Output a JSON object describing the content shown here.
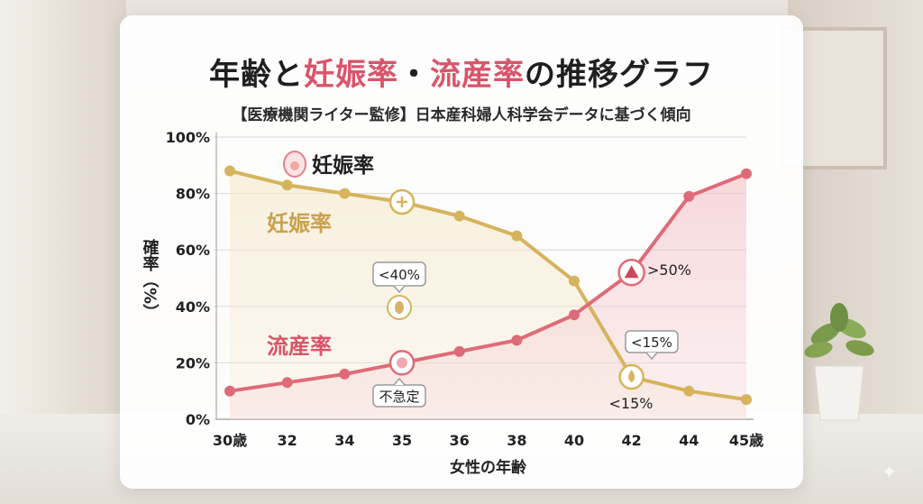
{
  "header": {
    "title_part1": "年齢と",
    "title_part2": "妊娠率",
    "title_part3": "・",
    "title_part4": "流産率",
    "title_part5": "の推移グラフ",
    "subtitle": "【医療機関ライター監修】日本産科婦人科学会データに基づく傾向"
  },
  "chart_data": {
    "type": "line",
    "xlabel": "女性の年齢",
    "ylabel": "確率（%）",
    "x_tick_labels": [
      "30歳",
      "32",
      "34",
      "35",
      "36",
      "38",
      "40",
      "42",
      "44",
      "45歳"
    ],
    "y_tick_labels": [
      "0%",
      "20%",
      "40%",
      "60%",
      "80%",
      "100%"
    ],
    "ylim": [
      0,
      100
    ],
    "grid": "horizontal",
    "legend": {
      "label": "妊娠率",
      "position": "top-left",
      "icon": "egg-icon"
    },
    "series": [
      {
        "name": "妊娠率",
        "color": "#d6b35c",
        "values": [
          88,
          83,
          80,
          77,
          72,
          65,
          49,
          15,
          10,
          7
        ]
      },
      {
        "name": "流産率",
        "color": "#de6b78",
        "values": [
          10,
          13,
          16,
          20,
          24,
          28,
          37,
          52,
          79,
          87
        ]
      }
    ],
    "annotations": [
      {
        "text": "<40%",
        "icon": "egg-icon",
        "category": "35"
      },
      {
        "text": "不急定",
        "icon": "embryo-icon",
        "category": "35"
      },
      {
        "text": ">50%",
        "icon": "warning-icon",
        "category": "42"
      },
      {
        "text": "<15%",
        "category": "42"
      },
      {
        "text": "<15%",
        "category": "42"
      }
    ],
    "markers": [
      {
        "series": "妊娠率",
        "category": "35",
        "icon": "plus-icon"
      },
      {
        "series": "流産率",
        "category": "35",
        "icon": "embryo-icon"
      },
      {
        "series": "流産率",
        "category": "42",
        "icon": "warning-icon"
      },
      {
        "series": "妊娠率",
        "category": "42",
        "icon": "drop-icon"
      }
    ]
  }
}
